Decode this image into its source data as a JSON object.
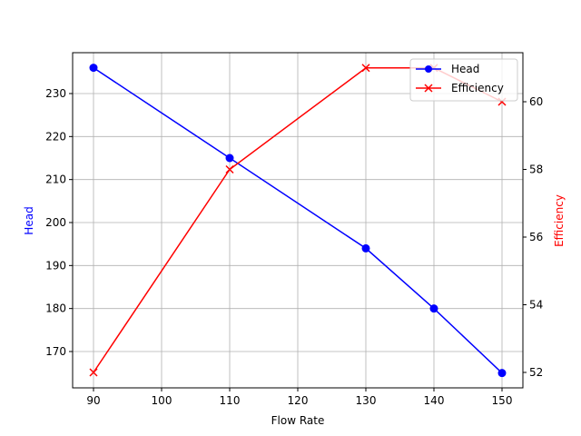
{
  "chart_data": {
    "type": "line",
    "title": "",
    "xlabel": "Flow Rate",
    "ylabel": "Head",
    "ylabel_right": "Efficiency",
    "x": [
      90,
      110,
      130,
      140,
      150
    ],
    "xlim": [
      87,
      153
    ],
    "xticks": [
      90,
      100,
      110,
      120,
      130,
      140,
      150
    ],
    "series": [
      {
        "name": "Head",
        "axis": "left",
        "color": "#0000ff",
        "marker": "o",
        "x": [
          90,
          110,
          130,
          140,
          150
        ],
        "values": [
          236,
          215,
          194,
          180,
          165
        ]
      },
      {
        "name": "Efficiency",
        "axis": "right",
        "color": "#ff0000",
        "marker": "x",
        "x": [
          90,
          110,
          130,
          140,
          150
        ],
        "values": [
          52,
          58,
          61,
          61,
          60
        ]
      }
    ],
    "ylim_left": [
      162,
      239
    ],
    "yticks_left": [
      170,
      180,
      190,
      200,
      210,
      220,
      230
    ],
    "ylim_right": [
      51.6,
      61.4
    ],
    "yticks_right": [
      52,
      54,
      56,
      58,
      60
    ],
    "grid": true,
    "legend_position": "upper right"
  }
}
